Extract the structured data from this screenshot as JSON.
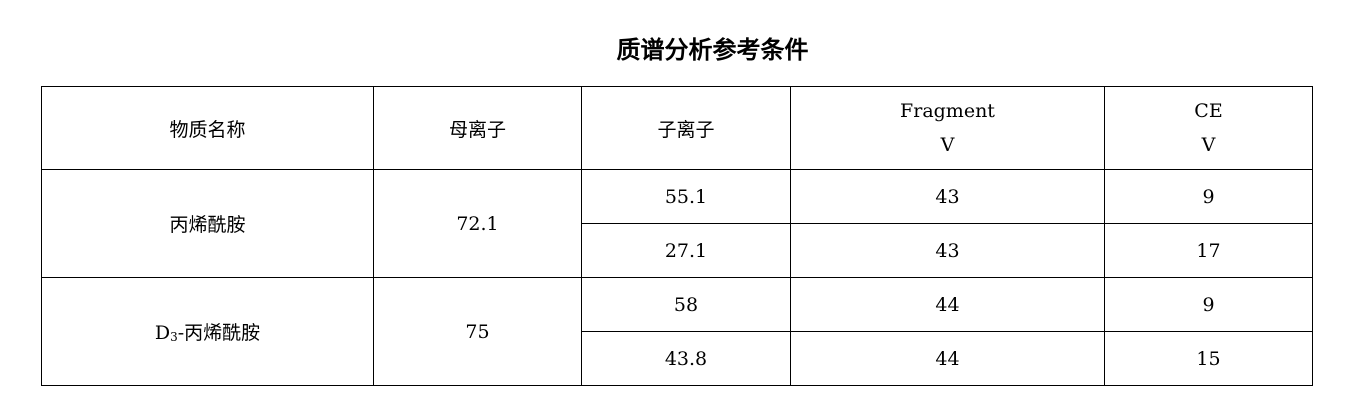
{
  "title": "质谱分析参考条件",
  "table": {
    "headers": {
      "name": "物质名称",
      "parent_ion": "母离子",
      "daughter_ion": "子离子",
      "fragment_line1": "Fragment",
      "fragment_line2": "V",
      "ce_line1": "CE",
      "ce_line2": "V"
    },
    "groups": [
      {
        "name": "丙烯酰胺",
        "parent_ion": "72.1",
        "rows": [
          {
            "daughter_ion": "55.1",
            "fragment": "43",
            "ce": "9"
          },
          {
            "daughter_ion": "27.1",
            "fragment": "43",
            "ce": "17"
          }
        ]
      },
      {
        "name_prefix": "D",
        "name_subscript": "3",
        "name": "-丙烯酰胺",
        "parent_ion": "75",
        "rows": [
          {
            "daughter_ion": "58",
            "fragment": "44",
            "ce": "9"
          },
          {
            "daughter_ion": "43.8",
            "fragment": "44",
            "ce": "15"
          }
        ]
      }
    ]
  }
}
